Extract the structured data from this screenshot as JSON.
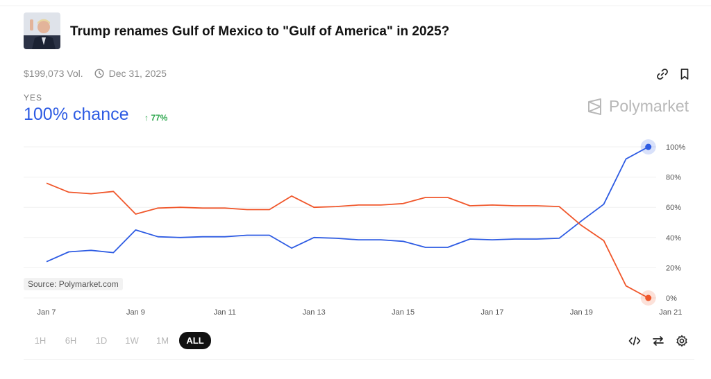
{
  "header": {
    "title": "Trump renames Gulf of Mexico to \"Gulf of America\" in 2025?",
    "volume": "$199,073 Vol.",
    "end_date": "Dec 31, 2025"
  },
  "outcome": {
    "label": "YES",
    "chance": "100% chance",
    "change": "↑ 77%"
  },
  "brand": "Polymarket",
  "source_label": "Source: Polymarket.com",
  "ranges": [
    "1H",
    "6H",
    "1D",
    "1W",
    "1M",
    "ALL"
  ],
  "selected_range": "ALL",
  "icons": {
    "link": "link-icon",
    "bookmark": "bookmark-icon",
    "clock": "clock-icon",
    "embed": "embed-code-icon",
    "swap": "swap-icon",
    "settings": "gear-icon"
  },
  "colors": {
    "yes": "#2d5be3",
    "no": "#f0562a",
    "chance_text": "#2d5be3",
    "change_text": "#2fa84f"
  },
  "chart_data": {
    "type": "line",
    "x_ticks": [
      "Jan 7",
      "Jan 9",
      "Jan 11",
      "Jan 13",
      "Jan 15",
      "Jan 17",
      "Jan 19",
      "Jan 21"
    ],
    "y_ticks": [
      "100%",
      "80%",
      "60%",
      "40%",
      "20%",
      "0%"
    ],
    "ylim": [
      0,
      100
    ],
    "grid": true,
    "series": [
      {
        "color": "#2d5be3",
        "points": [
          [
            0,
            24
          ],
          [
            0.5,
            30.5
          ],
          [
            1,
            31.5
          ],
          [
            1.5,
            30
          ],
          [
            2,
            45
          ],
          [
            2.5,
            40.5
          ],
          [
            3,
            40
          ],
          [
            3.5,
            40.5
          ],
          [
            4,
            40.5
          ],
          [
            4.5,
            41.5
          ],
          [
            5,
            41.5
          ],
          [
            5.5,
            33
          ],
          [
            6,
            40
          ],
          [
            6.5,
            39.5
          ],
          [
            7,
            38.5
          ],
          [
            7.5,
            38.5
          ],
          [
            8,
            37.5
          ],
          [
            8.5,
            33.5
          ],
          [
            9,
            33.5
          ],
          [
            9.5,
            39
          ],
          [
            10,
            38.5
          ],
          [
            10.5,
            39
          ],
          [
            11,
            39
          ],
          [
            11.5,
            39.5
          ],
          [
            12,
            51
          ],
          [
            12.5,
            62
          ],
          [
            13,
            92
          ],
          [
            13.5,
            100
          ]
        ]
      },
      {
        "color": "#f0562a",
        "points": [
          [
            0,
            76
          ],
          [
            0.5,
            70
          ],
          [
            1,
            69
          ],
          [
            1.5,
            70.5
          ],
          [
            2,
            55.5
          ],
          [
            2.5,
            59.5
          ],
          [
            3,
            60
          ],
          [
            3.5,
            59.5
          ],
          [
            4,
            59.5
          ],
          [
            4.5,
            58.5
          ],
          [
            5,
            58.5
          ],
          [
            5.5,
            67.5
          ],
          [
            6,
            60
          ],
          [
            6.5,
            60.5
          ],
          [
            7,
            61.5
          ],
          [
            7.5,
            61.5
          ],
          [
            8,
            62.5
          ],
          [
            8.5,
            66.5
          ],
          [
            9,
            66.5
          ],
          [
            9.5,
            61
          ],
          [
            10,
            61.5
          ],
          [
            10.5,
            61
          ],
          [
            11,
            61
          ],
          [
            11.5,
            60.5
          ],
          [
            12,
            48
          ],
          [
            12.5,
            38
          ],
          [
            13,
            8
          ],
          [
            13.5,
            0
          ]
        ]
      }
    ],
    "last_values": [
      100,
      0
    ]
  }
}
